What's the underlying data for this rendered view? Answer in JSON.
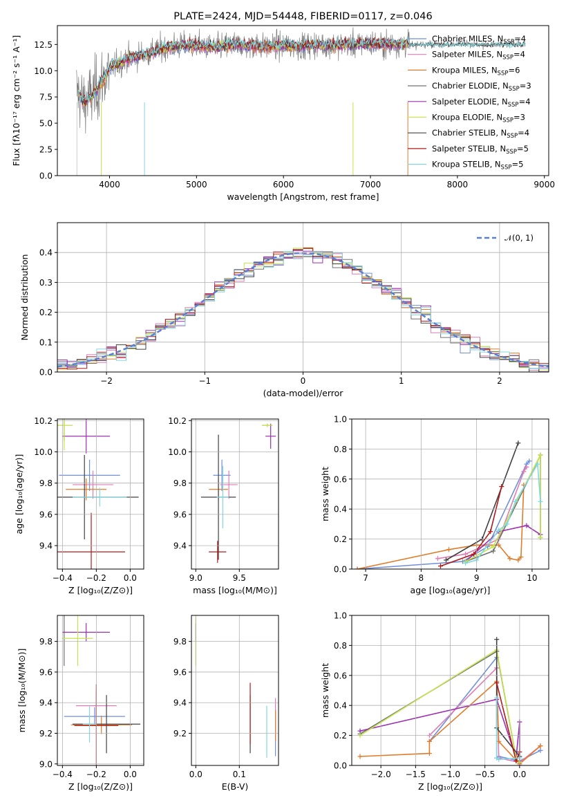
{
  "colors": {
    "chabrier_miles": "#6f8fdc",
    "salpeter_miles": "#e07bb5",
    "kroupa_miles": "#e07b2a",
    "chabrier_elodie": "#707070",
    "salpeter_elodie": "#9b2fb0",
    "kroupa_elodie": "#c5e64a",
    "chabrier_stelib": "#404040",
    "salpeter_stelib": "#b01818",
    "kroupa_stelib": "#80d8e0",
    "normal": "#5b7fd6"
  },
  "chart_data": [
    {
      "id": "spectrum",
      "type": "line",
      "title": "PLATE=2424, MJD=54448, FIBERID=0117, z=0.046",
      "xlabel": "wavelength [Angstrom, rest frame]",
      "ylabel": "Flux [fλ10⁻¹⁷ erg cm⁻² s⁻¹ A⁻¹]",
      "xlim": [
        3400,
        9050
      ],
      "ylim": [
        0,
        14.3
      ],
      "xticks": [
        "4000",
        "5000",
        "6000",
        "7000",
        "8000",
        "9000"
      ],
      "yticks": [
        "0.0",
        "2.5",
        "5.0",
        "7.5",
        "10.0",
        "12.5"
      ],
      "legend": [
        {
          "label": "Chabrier MILES, N",
          "sub": "SSP",
          "tail": "=4",
          "color": "chabrier_miles"
        },
        {
          "label": "Salpeter MILES, N",
          "sub": "SSP",
          "tail": "=4",
          "color": "salpeter_miles"
        },
        {
          "label": "Kroupa MILES, N",
          "sub": "SSP",
          "tail": "=6",
          "color": "kroupa_miles"
        },
        {
          "label": "Chabrier ELODIE, N",
          "sub": "SSP",
          "tail": "=3",
          "color": "chabrier_elodie"
        },
        {
          "label": "Salpeter ELODIE, N",
          "sub": "SSP",
          "tail": "=4",
          "color": "salpeter_elodie"
        },
        {
          "label": "Kroupa ELODIE, N",
          "sub": "SSP",
          "tail": "=3",
          "color": "kroupa_elodie"
        },
        {
          "label": "Chabrier STELIB, N",
          "sub": "SSP",
          "tail": "=4",
          "color": "chabrier_stelib"
        },
        {
          "label": "Salpeter STELIB, N",
          "sub": "SSP",
          "tail": "=5",
          "color": "salpeter_stelib"
        },
        {
          "label": "Kroupa STELIB, N",
          "sub": "SSP",
          "tail": "=5",
          "color": "kroupa_stelib"
        }
      ],
      "continuum": {
        "x": [
          3630,
          3700,
          3800,
          3900,
          4000,
          4200,
          4400,
          4600,
          4800,
          5000,
          5200,
          5400,
          5600,
          5800,
          6000,
          6200,
          6400,
          6600,
          6800,
          7000,
          7200,
          7400
        ],
        "y": [
          8.0,
          7.0,
          7.6,
          8.8,
          10.2,
          11.1,
          11.6,
          12.1,
          12.4,
          12.4,
          12.2,
          12.5,
          12.4,
          12.3,
          12.4,
          12.3,
          12.5,
          12.4,
          12.5,
          12.6,
          12.5,
          12.6
        ]
      },
      "data_range": [
        3620,
        8780
      ]
    },
    {
      "id": "residuals",
      "type": "histogram",
      "xlabel": "(data-model)/error",
      "ylabel": "Normed distribution",
      "xlim": [
        -2.5,
        2.5
      ],
      "ylim": [
        0,
        0.5
      ],
      "xticks": [
        "−2",
        "−1",
        "0",
        "1",
        "2"
      ],
      "yticks": [
        "0.0",
        "0.1",
        "0.2",
        "0.3",
        "0.4"
      ],
      "legend_label": "𝒩(0, 1)",
      "bin_width": 0.1
    },
    {
      "id": "age_vs_Z",
      "type": "errorbar",
      "xlabel": "Z [log₁₀(Z/Z⊙)]",
      "ylabel": "age  [log₁₀(age/yr)]",
      "xlim": [
        -0.43,
        0.08
      ],
      "ylim": [
        9.25,
        10.21
      ],
      "xticks": [
        "−0.4",
        "−0.2",
        "0.0"
      ],
      "yticks": [
        "9.4",
        "9.6",
        "9.8",
        "10.0",
        "10.2"
      ],
      "points": [
        {
          "model": "chabrier_miles",
          "x": -0.24,
          "y": 9.85,
          "xerr": 0.18,
          "yerr": 0.1
        },
        {
          "model": "salpeter_miles",
          "x": -0.22,
          "y": 9.79,
          "xerr": 0.12,
          "yerr": 0.09
        },
        {
          "model": "kroupa_miles",
          "x": -0.26,
          "y": 9.76,
          "xerr": 0.12,
          "yerr": 0.07
        },
        {
          "model": "chabrier_elodie",
          "x": -0.39,
          "y": 10.17,
          "xerr": 0.05,
          "yerr": 0.1
        },
        {
          "model": "salpeter_elodie",
          "x": -0.26,
          "y": 10.1,
          "xerr": 0.14,
          "yerr": 0.11
        },
        {
          "model": "kroupa_elodie",
          "x": -0.39,
          "y": 10.17,
          "xerr": 0.05,
          "yerr": 0.16
        },
        {
          "model": "chabrier_stelib",
          "x": -0.27,
          "y": 9.71,
          "xerr": 0.32,
          "yerr": 0.27
        },
        {
          "model": "salpeter_stelib",
          "x": -0.23,
          "y": 9.36,
          "xerr": 0.2,
          "yerr": 0.25
        },
        {
          "model": "kroupa_stelib",
          "x": -0.18,
          "y": 9.71,
          "xerr": 0.16,
          "yerr": 0.06
        }
      ]
    },
    {
      "id": "age_vs_mass",
      "type": "errorbar",
      "xlabel": "mass [log₁₀(M/M⊙)]",
      "ylabel": "",
      "xlim": [
        8.95,
        9.95
      ],
      "ylim": [
        9.25,
        10.21
      ],
      "xticks": [
        "9.0",
        "9.5"
      ],
      "yticks": [
        "9.4",
        "9.6",
        "9.8",
        "10.0",
        "10.2"
      ],
      "points": [
        {
          "model": "chabrier_miles",
          "x": 9.3,
          "y": 9.85,
          "xerr": 0.1,
          "yerr": 0.1
        },
        {
          "model": "salpeter_miles",
          "x": 9.38,
          "y": 9.79,
          "xerr": 0.1,
          "yerr": 0.09
        },
        {
          "model": "kroupa_miles",
          "x": 9.26,
          "y": 9.76,
          "xerr": 0.11,
          "yerr": 0.07
        },
        {
          "model": "chabrier_elodie",
          "x": 9.82,
          "y": 10.17,
          "xerr": 0.06,
          "yerr": 0.01
        },
        {
          "model": "salpeter_elodie",
          "x": 9.86,
          "y": 10.1,
          "xerr": 0.06,
          "yerr": 0.08
        },
        {
          "model": "kroupa_elodie",
          "x": 9.82,
          "y": 10.17,
          "xerr": 0.06,
          "yerr": 0.01
        },
        {
          "model": "chabrier_stelib",
          "x": 9.26,
          "y": 9.71,
          "xerr": 0.2,
          "yerr": 0.4
        },
        {
          "model": "salpeter_stelib",
          "x": 9.25,
          "y": 9.36,
          "xerr": 0.1,
          "yerr": 0.07
        },
        {
          "model": "kroupa_stelib",
          "x": 9.31,
          "y": 9.71,
          "xerr": 0.07,
          "yerr": 0.2
        }
      ]
    },
    {
      "id": "mw_vs_age",
      "type": "line",
      "xlabel": "age  [log₁₀(age/yr)]",
      "ylabel": "mass weight",
      "xlim": [
        6.75,
        10.3
      ],
      "ylim": [
        0,
        1.0
      ],
      "xticks": [
        "7",
        "8",
        "9",
        "10"
      ],
      "yticks": [
        "0.0",
        "0.2",
        "0.4",
        "0.6",
        "0.8",
        "1.0"
      ],
      "series": [
        {
          "model": "chabrier_miles",
          "x": [
            6.85,
            8.75,
            9.2,
            9.9,
            9.95
          ],
          "y": [
            0.0,
            0.05,
            0.15,
            0.7,
            0.72
          ]
        },
        {
          "model": "salpeter_miles",
          "x": [
            8.3,
            8.8,
            9.4,
            9.85,
            9.9
          ],
          "y": [
            0.07,
            0.1,
            0.2,
            0.65,
            0.68
          ]
        },
        {
          "model": "kroupa_miles",
          "x": [
            6.85,
            8.5,
            9.0,
            9.4,
            9.6,
            9.75,
            9.8,
            9.85
          ],
          "y": [
            0.0,
            0.13,
            0.16,
            0.16,
            0.07,
            0.06,
            0.08,
            0.56
          ]
        },
        {
          "model": "chabrier_elodie",
          "x": [
            8.8,
            9.3,
            10.15,
            10.15
          ],
          "y": [
            0.05,
            0.12,
            0.76,
            0.21
          ]
        },
        {
          "model": "salpeter_elodie",
          "x": [
            8.8,
            9.4,
            9.9,
            10.15
          ],
          "y": [
            0.05,
            0.25,
            0.29,
            0.23
          ]
        },
        {
          "model": "kroupa_elodie",
          "x": [
            8.8,
            9.3,
            10.15,
            10.15
          ],
          "y": [
            0.05,
            0.15,
            0.76,
            0.21
          ]
        },
        {
          "model": "chabrier_stelib",
          "x": [
            8.45,
            9.1,
            9.75
          ],
          "y": [
            0.06,
            0.2,
            0.84
          ]
        },
        {
          "model": "salpeter_stelib",
          "x": [
            8.35,
            8.95,
            9.25,
            9.45
          ],
          "y": [
            0.02,
            0.1,
            0.25,
            0.55
          ]
        },
        {
          "model": "kroupa_stelib",
          "x": [
            8.8,
            9.0,
            9.4,
            9.55,
            9.7,
            10.1,
            10.15
          ],
          "y": [
            0.04,
            0.06,
            0.26,
            0.3,
            0.45,
            0.7,
            0.45
          ]
        }
      ]
    },
    {
      "id": "mass_vs_Z",
      "type": "errorbar",
      "xlabel": "Z [log₁₀(Z/Z⊙)]",
      "ylabel": "mass [log₁₀(M/M⊙)]",
      "xlim": [
        -0.43,
        0.08
      ],
      "ylim": [
        8.99,
        9.97
      ],
      "xticks": [
        "−0.4",
        "−0.2",
        "0.0"
      ],
      "yticks": [
        "9.0",
        "9.2",
        "9.4",
        "9.6",
        "9.8"
      ],
      "points": [
        {
          "model": "chabrier_miles",
          "x": -0.21,
          "y": 9.31,
          "xerr": 0.18,
          "yerr": 0.06
        },
        {
          "model": "salpeter_miles",
          "x": -0.2,
          "y": 9.38,
          "xerr": 0.12,
          "yerr": 0.1
        },
        {
          "model": "kroupa_miles",
          "x": -0.17,
          "y": 9.255,
          "xerr": 0.18,
          "yerr": 0.06
        },
        {
          "model": "chabrier_elodie",
          "x": -0.39,
          "y": 9.82,
          "xerr": 0.0,
          "yerr": 0.18
        },
        {
          "model": "salpeter_elodie",
          "x": -0.26,
          "y": 9.86,
          "xerr": 0.14,
          "yerr": 0.06
        },
        {
          "model": "kroupa_elodie",
          "x": -0.31,
          "y": 9.82,
          "xerr": 0.09,
          "yerr": 0.18
        },
        {
          "model": "chabrier_stelib",
          "x": -0.14,
          "y": 9.26,
          "xerr": 0.2,
          "yerr": 0.19
        },
        {
          "model": "salpeter_stelib",
          "x": -0.2,
          "y": 9.25,
          "xerr": 0.13,
          "yerr": 0.27
        },
        {
          "model": "kroupa_stelib",
          "x": -0.24,
          "y": 9.26,
          "xerr": 0.04,
          "yerr": 0.12
        }
      ]
    },
    {
      "id": "mass_vs_ebv",
      "type": "errorbar",
      "xlabel": "E(B-V)",
      "ylabel": "",
      "xlim": [
        -0.01,
        0.19
      ],
      "ylim": [
        8.99,
        9.97
      ],
      "xticks": [
        "0.0",
        "0.1"
      ],
      "yticks": [
        "9.2",
        "9.4",
        "9.6",
        "9.8"
      ],
      "points": [
        {
          "model": "salpeter_elodie",
          "x": 0.0,
          "y": 9.86,
          "xerr": 0,
          "yerr": 0.06
        },
        {
          "model": "kroupa_elodie",
          "x": 0.0,
          "y": 9.8,
          "xerr": 0,
          "yerr": 0.16
        },
        {
          "model": "chabrier_stelib",
          "x": 0.125,
          "y": 9.26,
          "xerr": 0,
          "yerr": 0.19
        },
        {
          "model": "salpeter_stelib",
          "x": 0.125,
          "y": 9.33,
          "xerr": 0,
          "yerr": 0.2
        },
        {
          "model": "kroupa_stelib",
          "x": 0.163,
          "y": 9.21,
          "xerr": 0,
          "yerr": 0.17
        },
        {
          "model": "chabrier_miles",
          "x": 0.183,
          "y": 9.2,
          "xerr": 0,
          "yerr": 0.15
        },
        {
          "model": "salpeter_miles",
          "x": 0.183,
          "y": 9.29,
          "xerr": 0,
          "yerr": 0.14
        },
        {
          "model": "kroupa_miles",
          "x": 0.183,
          "y": 9.25,
          "xerr": 0,
          "yerr": 0.1
        }
      ]
    },
    {
      "id": "mw_vs_Z",
      "type": "line",
      "xlabel": "Z [log₁₀(Z/Z⊙)]",
      "ylabel": "mass weight",
      "xlim": [
        -2.42,
        0.42
      ],
      "ylim": [
        0,
        1.0
      ],
      "xticks": [
        "−2.0",
        "−1.5",
        "−1.0",
        "−0.5",
        "0.0"
      ],
      "yticks": [
        "0.0",
        "0.2",
        "0.4",
        "0.6",
        "0.8",
        "1.0"
      ],
      "series": [
        {
          "model": "chabrier_miles",
          "x": [
            -1.3,
            -0.33,
            -0.33,
            -0.3,
            0.0,
            0.3
          ],
          "y": [
            0.16,
            0.72,
            0.05,
            0.06,
            0.03,
            0.1
          ]
        },
        {
          "model": "salpeter_miles",
          "x": [
            -1.3,
            -0.33,
            -0.3,
            0.0,
            0.3
          ],
          "y": [
            0.2,
            0.65,
            0.05,
            0.02,
            0.13
          ]
        },
        {
          "model": "kroupa_miles",
          "x": [
            -2.3,
            -1.3,
            -1.3,
            -0.33,
            -0.3,
            0.0,
            0.3
          ],
          "y": [
            0.06,
            0.08,
            0.16,
            0.56,
            0.16,
            0.01,
            0.13
          ]
        },
        {
          "model": "chabrier_elodie",
          "x": [
            -2.3,
            -0.33,
            -0.05,
            0.0
          ],
          "y": [
            0.21,
            0.76,
            0.05,
            0.02
          ]
        },
        {
          "model": "salpeter_elodie",
          "x": [
            -2.3,
            -0.33,
            -0.05,
            0.0,
            0.0
          ],
          "y": [
            0.23,
            0.44,
            0.05,
            0.29,
            0.0
          ]
        },
        {
          "model": "kroupa_elodie",
          "x": [
            -2.3,
            -0.33,
            -0.05,
            0.0
          ],
          "y": [
            0.2,
            0.77,
            0.05,
            0.02
          ]
        },
        {
          "model": "chabrier_stelib",
          "x": [
            -0.33,
            -0.33,
            0.0
          ],
          "y": [
            0.84,
            0.25,
            0.06
          ]
        },
        {
          "model": "salpeter_stelib",
          "x": [
            -0.33,
            -0.05,
            0.0
          ],
          "y": [
            0.55,
            0.03,
            0.09
          ]
        },
        {
          "model": "kroupa_stelib",
          "x": [
            -0.33,
            -0.33,
            -0.3,
            0.0
          ],
          "y": [
            0.45,
            0.05,
            0.04,
            0.05
          ]
        }
      ]
    }
  ]
}
